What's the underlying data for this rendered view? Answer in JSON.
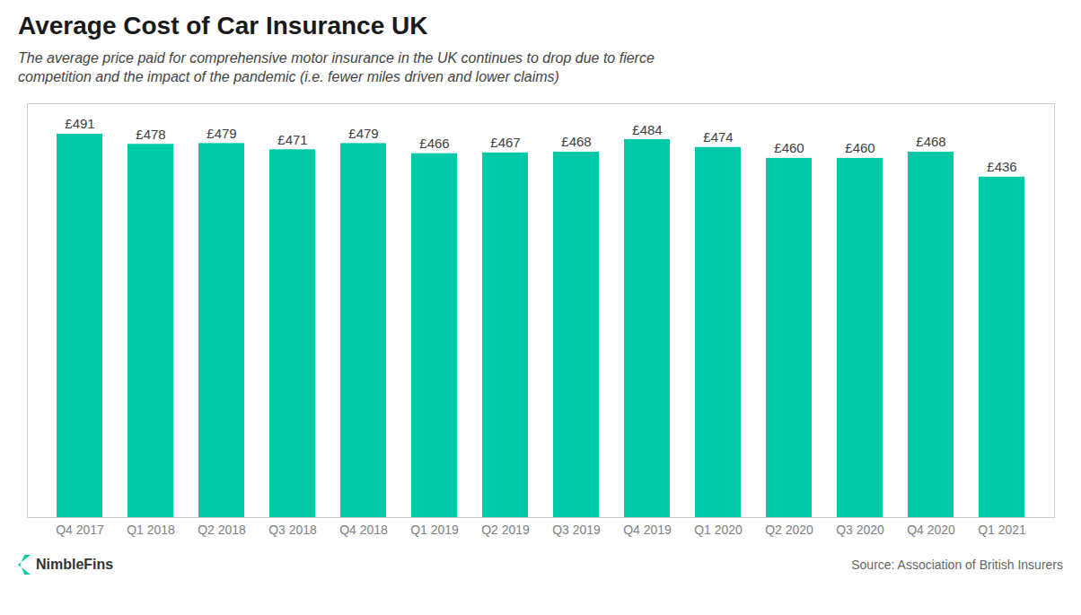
{
  "chart_data": {
    "type": "bar",
    "title": "Average Cost of Car Insurance UK",
    "subtitle": [
      "The average price paid for comprehensive motor insurance in the UK continues to drop due to fierce",
      "competition and the impact of the pandemic (i.e. fewer miles driven and lower claims)"
    ],
    "annotations": [
      "Source: Association of British Insurers",
      "NimbleFins"
    ],
    "categories": [
      "Q4 2017",
      "Q1 2018",
      "Q2 2018",
      "Q3 2018",
      "Q4 2018",
      "Q1 2019",
      "Q2 2019",
      "Q3 2019",
      "Q4 2019",
      "Q1 2020",
      "Q2 2020",
      "Q3 2020",
      "Q4 2020",
      "Q1 2021"
    ],
    "values": [
      491,
      478,
      479,
      471,
      479,
      466,
      467,
      468,
      484,
      474,
      460,
      460,
      468,
      436
    ],
    "value_labels": [
      "£491",
      "£478",
      "£479",
      "£471",
      "£479",
      "£466",
      "£467",
      "£468",
      "£484",
      "£474",
      "£460",
      "£460",
      "£468",
      "£436"
    ],
    "data_labels": true,
    "color": "#00C9A7",
    "ylim": [
      0,
      530
    ],
    "tick_labels": "x",
    "grid": false
  }
}
